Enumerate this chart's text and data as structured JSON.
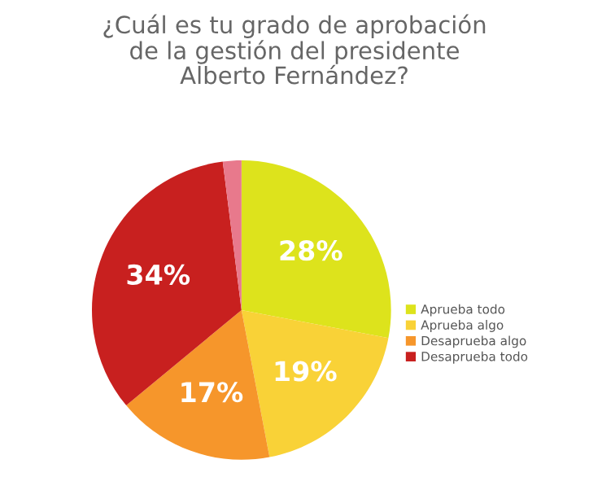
{
  "chart_data": {
    "type": "pie",
    "title": "¿Cuál es tu grado de aprobación\nde la gestión del presidente\nAlberto Fernández?",
    "categories": [
      "Aprueba todo",
      "Aprueba algo",
      "Desaprueba algo",
      "Desaprueba todo",
      null
    ],
    "values": [
      28,
      19,
      17,
      34,
      2
    ],
    "colors": [
      "#dde31c",
      "#f9d237",
      "#f6962b",
      "#c8201f",
      "#e8798c"
    ],
    "value_labels": [
      "28%",
      "19%",
      "17%",
      "34%",
      null
    ],
    "legend": "right"
  }
}
